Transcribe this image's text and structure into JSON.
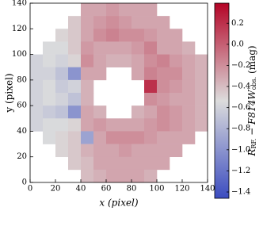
{
  "chart_data": {
    "type": "heatmap",
    "xlabel": "x (pixel)",
    "ylabel": "y (pixel)",
    "colorbar_label": [
      "R",
      "RF.",
      " − F814W",
      "obs.",
      " (mag)"
    ],
    "x": [
      5,
      15,
      25,
      35,
      45,
      55,
      65,
      75,
      85,
      95,
      105,
      115,
      125,
      135
    ],
    "y": [
      135,
      125,
      115,
      105,
      95,
      85,
      75,
      65,
      55,
      45,
      35,
      25,
      15,
      5
    ],
    "z": [
      [
        null,
        null,
        null,
        null,
        -0.3,
        -0.3,
        -0.25,
        -0.3,
        -0.3,
        -0.3,
        null,
        null,
        null,
        null
      ],
      [
        null,
        null,
        null,
        -0.45,
        -0.3,
        -0.25,
        -0.2,
        -0.25,
        -0.3,
        -0.3,
        -0.3,
        null,
        null,
        null
      ],
      [
        null,
        null,
        -0.5,
        -0.45,
        -0.3,
        -0.2,
        -0.15,
        -0.2,
        -0.2,
        -0.25,
        -0.3,
        -0.3,
        null,
        null
      ],
      [
        null,
        -0.55,
        -0.55,
        -0.45,
        -0.25,
        -0.3,
        -0.3,
        -0.3,
        -0.25,
        -0.15,
        -0.3,
        -0.3,
        -0.35,
        null
      ],
      [
        -0.6,
        -0.55,
        -0.6,
        -0.5,
        -0.2,
        -0.3,
        -0.35,
        -0.35,
        -0.3,
        -0.2,
        -0.15,
        -0.25,
        -0.3,
        -0.35
      ],
      [
        -0.6,
        -0.6,
        -0.7,
        -1.0,
        -0.3,
        -0.3,
        null,
        null,
        -0.3,
        -0.15,
        -0.2,
        -0.2,
        -0.3,
        -0.35
      ],
      [
        -0.6,
        -0.55,
        -0.65,
        -0.6,
        -0.35,
        null,
        null,
        null,
        null,
        0.2,
        -0.2,
        -0.25,
        -0.3,
        -0.35
      ],
      [
        -0.6,
        -0.55,
        -0.6,
        -0.7,
        -0.35,
        null,
        null,
        null,
        null,
        -0.2,
        -0.25,
        -0.3,
        -0.3,
        -0.35
      ],
      [
        -0.6,
        -0.65,
        -0.7,
        -1.0,
        -0.3,
        -0.35,
        null,
        null,
        -0.35,
        -0.3,
        -0.2,
        -0.25,
        -0.3,
        -0.35
      ],
      [
        -0.6,
        -0.55,
        -0.55,
        -0.5,
        -0.3,
        -0.25,
        -0.3,
        -0.3,
        -0.3,
        -0.25,
        -0.2,
        -0.25,
        -0.3,
        -0.35
      ],
      [
        null,
        -0.55,
        -0.5,
        -0.45,
        -0.9,
        -0.3,
        -0.2,
        -0.2,
        -0.2,
        -0.25,
        -0.3,
        -0.3,
        -0.3,
        null
      ],
      [
        null,
        null,
        -0.5,
        -0.45,
        -0.35,
        -0.3,
        -0.3,
        -0.25,
        -0.3,
        -0.3,
        -0.3,
        -0.3,
        null,
        null
      ],
      [
        null,
        null,
        null,
        -0.45,
        -0.4,
        -0.3,
        -0.3,
        -0.3,
        -0.3,
        -0.3,
        -0.3,
        null,
        null,
        null
      ],
      [
        null,
        null,
        null,
        null,
        -0.4,
        -0.35,
        -0.3,
        -0.3,
        -0.3,
        -0.35,
        null,
        null,
        null,
        null
      ]
    ],
    "cell_size": 10,
    "xlim": [
      0,
      140
    ],
    "ylim": [
      0,
      140
    ],
    "xticks": [
      0,
      20,
      40,
      60,
      80,
      100,
      120,
      140
    ],
    "yticks": [
      0,
      20,
      40,
      60,
      80,
      100,
      120,
      140
    ],
    "colormap": [
      "#3b4cc0",
      "#dcdcdc",
      "#b40426"
    ],
    "vlim": [
      -1.46,
      0.39
    ],
    "colorbar_ticks": [
      0.2,
      {
        "value": 0,
        "label": "0.0"
      },
      {
        "value": -0.2,
        "label": "−0.2"
      },
      {
        "value": -0.4,
        "label": "−0.4"
      },
      {
        "value": -0.6,
        "label": "−0.6"
      },
      {
        "value": -0.8,
        "label": "−0.8"
      },
      {
        "value": -1.0,
        "label": "−1.0"
      },
      {
        "value": -1.2,
        "label": "−1.2"
      },
      {
        "value": -1.4,
        "label": "−1.4"
      }
    ]
  }
}
